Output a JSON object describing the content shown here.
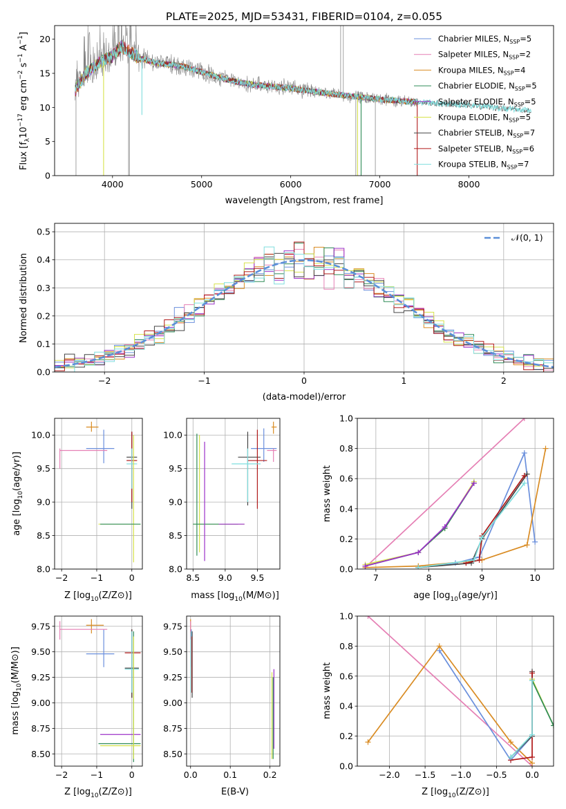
{
  "figure": {
    "title": "PLATE=2025, MJD=53431, FIBERID=0104, z=0.055"
  },
  "colors": {
    "Chabrier MILES": "#6a8fdc",
    "Salpeter MILES": "#e57fb4",
    "Kroupa MILES": "#d98b22",
    "Chabrier ELODIE": "#2e8b57",
    "Salpeter ELODIE": "#9b30c8",
    "Kroupa ELODIE": "#d6e24a",
    "Chabrier STELIB": "#444444",
    "Salpeter STELIB": "#b01818",
    "Kroupa STELIB": "#7fdede",
    "data": "#808080",
    "normal": "#5b8fd8",
    "orange_series": "#e07b22"
  },
  "chart_data": [
    {
      "id": "spectrum",
      "type": "line",
      "title": "PLATE=2025, MJD=53431, FIBERID=0104, z=0.055",
      "xlabel": "wavelength [Angstrom, rest frame]",
      "ylabel_parts": [
        "Flux [f",
        "λ",
        "10",
        "−17",
        " erg cm",
        "−2",
        " s",
        "−1",
        " A",
        "−1",
        "]"
      ],
      "xlim": [
        3350,
        8950
      ],
      "ylim": [
        0,
        22
      ],
      "xticks": [
        "4000",
        "5000",
        "6000",
        "7000",
        "8000"
      ],
      "yticks": [
        "0",
        "5",
        "10",
        "15",
        "20"
      ],
      "grid": false,
      "legend_position": "top-right",
      "legend": [
        {
          "main": "Chabrier MILES, N",
          "sub": "SSP",
          "tail": "=5"
        },
        {
          "main": "Salpeter MILES, N",
          "sub": "SSP",
          "tail": "=2"
        },
        {
          "main": "Kroupa MILES, N",
          "sub": "SSP",
          "tail": "=4"
        },
        {
          "main": "Chabrier ELODIE, N",
          "sub": "SSP",
          "tail": "=5"
        },
        {
          "main": "Salpeter ELODIE, N",
          "sub": "SSP",
          "tail": "=5"
        },
        {
          "main": "Kroupa ELODIE, N",
          "sub": "SSP",
          "tail": "=5"
        },
        {
          "main": "Chabrier STELIB, N",
          "sub": "SSP",
          "tail": "=7"
        },
        {
          "main": "Salpeter STELIB, N",
          "sub": "SSP",
          "tail": "=6"
        },
        {
          "main": "Kroupa STELIB, N",
          "sub": "SSP",
          "tail": "=7"
        }
      ],
      "continuum_nodes": [
        [
          3580,
          12.5
        ],
        [
          3700,
          15.0
        ],
        [
          3850,
          16.5
        ],
        [
          4000,
          17.5
        ],
        [
          4100,
          19.0
        ],
        [
          4300,
          17.2
        ],
        [
          4500,
          16.5
        ],
        [
          4800,
          16.0
        ],
        [
          5000,
          15.2
        ],
        [
          5300,
          14.0
        ],
        [
          5600,
          13.3
        ],
        [
          6000,
          12.8
        ],
        [
          6500,
          11.9
        ],
        [
          7000,
          11.2
        ],
        [
          7500,
          10.7
        ],
        [
          8000,
          10.3
        ],
        [
          8700,
          9.5
        ]
      ]
    },
    {
      "id": "residuals",
      "type": "histogram",
      "xlabel": "(data-model)/error",
      "ylabel": "Normed distribution",
      "xlim": [
        -2.5,
        2.5
      ],
      "ylim": [
        0,
        0.53
      ],
      "xticks": [
        "−2",
        "−1",
        "0",
        "1",
        "2"
      ],
      "yticks": [
        "0.0",
        "0.1",
        "0.2",
        "0.3",
        "0.4",
        "0.5"
      ],
      "grid": true,
      "legend_position": "top-right",
      "legend_label": "𝒩(0, 1)",
      "bin_width": 0.1
    },
    {
      "id": "age-vs-Z",
      "type": "errorbar",
      "xlabel": "Z [log10(Z/Z⊙)]",
      "ylabel": "age  [log10(age/yr)]",
      "xlim": [
        -2.2,
        0.3
      ],
      "ylim": [
        8.0,
        10.25
      ],
      "xticks": [
        "−2",
        "−1",
        "0"
      ],
      "yticks": [
        "8.0",
        "8.5",
        "9.0",
        "9.5",
        "10.0"
      ],
      "grid": true
    },
    {
      "id": "age-vs-mass",
      "type": "errorbar",
      "xlabel": "mass [log10(M/M⊙)]",
      "ylabel": "",
      "xlim": [
        8.4,
        9.85
      ],
      "ylim": [
        8.0,
        10.25
      ],
      "xticks": [
        "8.5",
        "9.0",
        "9.5"
      ],
      "yticks": [
        "8.0",
        "8.5",
        "9.0",
        "9.5",
        "10.0"
      ],
      "grid": true
    },
    {
      "id": "weight-vs-age",
      "type": "line",
      "xlabel": "age  [log10(age/yr)]",
      "ylabel": "mass weight",
      "xlim": [
        6.65,
        10.35
      ],
      "ylim": [
        0,
        1.0
      ],
      "xticks": [
        "7",
        "8",
        "9",
        "10"
      ],
      "yticks": [
        "0.0",
        "0.2",
        "0.4",
        "0.6",
        "0.8",
        "1.0"
      ],
      "grid": true,
      "series": [
        {
          "model": "Salpeter MILES",
          "x": [
            6.8,
            9.8
          ],
          "y": [
            0.01,
            1.0
          ]
        },
        {
          "model": "Kroupa ELODIE",
          "x": [
            6.8,
            7.8,
            8.3,
            8.85
          ],
          "y": [
            0.03,
            0.11,
            0.27,
            0.58
          ]
        },
        {
          "model": "Chabrier ELODIE",
          "x": [
            6.8,
            7.8,
            8.3,
            8.85
          ],
          "y": [
            0.02,
            0.11,
            0.27,
            0.57
          ]
        },
        {
          "model": "Chabrier MILES",
          "x": [
            7.8,
            8.5,
            8.95,
            9.8,
            10.0
          ],
          "y": [
            0.01,
            0.04,
            0.08,
            0.77,
            0.18
          ]
        },
        {
          "model": "Kroupa MILES",
          "x": [
            6.8,
            7.8,
            9.0,
            9.85,
            10.2
          ],
          "y": [
            0.01,
            0.02,
            0.06,
            0.16,
            0.8
          ]
        },
        {
          "model": "Chabrier STELIB",
          "x": [
            7.8,
            8.8,
            9.0,
            9.85
          ],
          "y": [
            0.01,
            0.04,
            0.2,
            0.63
          ]
        },
        {
          "model": "Salpeter STELIB",
          "x": [
            8.7,
            8.95,
            9.0,
            9.8
          ],
          "y": [
            0.04,
            0.06,
            0.22,
            0.62
          ]
        },
        {
          "model": "Kroupa STELIB",
          "x": [
            7.8,
            8.85,
            9.0,
            9.8
          ],
          "y": [
            0.01,
            0.06,
            0.21,
            0.57
          ]
        },
        {
          "model": "Salpeter ELODIE",
          "x": [
            6.8,
            7.8,
            8.3,
            8.85
          ],
          "y": [
            0.02,
            0.11,
            0.28,
            0.57
          ]
        }
      ]
    },
    {
      "id": "mass-vs-Z",
      "type": "errorbar",
      "xlabel": "Z [log10(Z/Z⊙)]",
      "ylabel": "mass [log10(M/M⊙)]",
      "xlim": [
        -2.2,
        0.3
      ],
      "ylim": [
        8.38,
        9.85
      ],
      "xticks": [
        "−2",
        "−1",
        "0"
      ],
      "yticks": [
        "8.50",
        "8.75",
        "9.00",
        "9.25",
        "9.50",
        "9.75"
      ],
      "grid": true
    },
    {
      "id": "mass-vs-EBV",
      "type": "errorbar",
      "xlabel": "E(B-V)",
      "ylabel": "",
      "xlim": [
        -0.01,
        0.225
      ],
      "ylim": [
        8.38,
        9.85
      ],
      "xticks": [
        "0.0",
        "0.1",
        "0.2"
      ],
      "yticks": [
        "8.50",
        "8.75",
        "9.00",
        "9.25",
        "9.50",
        "9.75"
      ],
      "grid": true
    },
    {
      "id": "weight-vs-Z",
      "type": "line",
      "xlabel": "Z [log10(Z/Z⊙)]",
      "ylabel": "mass weight",
      "xlim": [
        -2.45,
        0.3
      ],
      "ylim": [
        0,
        1.0
      ],
      "xticks": [
        "−2.0",
        "−1.5",
        "−1.0",
        "−0.5",
        "0.0"
      ],
      "yticks": [
        "0.0",
        "0.2",
        "0.4",
        "0.6",
        "0.8",
        "1.0"
      ],
      "grid": true,
      "series": [
        {
          "model": "Salpeter MILES",
          "x": [
            -2.3,
            0.0
          ],
          "y": [
            1.0,
            0.0
          ]
        },
        {
          "model": "Kroupa MILES",
          "x": [
            -2.3,
            -1.3,
            -0.3,
            0.0
          ],
          "y": [
            0.16,
            0.8,
            0.16,
            0.02
          ]
        },
        {
          "model": "Chabrier MILES",
          "x": [
            -1.3,
            -0.3,
            0.0
          ],
          "y": [
            0.77,
            0.04,
            0.2
          ]
        },
        {
          "model": "Kroupa ELODIE",
          "x": [
            0.0,
            0.3
          ],
          "y": [
            0.58,
            0.27
          ]
        },
        {
          "model": "Chabrier ELODIE",
          "x": [
            0.0,
            0.3
          ],
          "y": [
            0.57,
            0.27
          ]
        },
        {
          "model": "Chabrier STELIB",
          "x": [
            -0.3,
            0.0,
            0.0
          ],
          "y": [
            0.06,
            0.2,
            0.63
          ]
        },
        {
          "model": "Salpeter STELIB",
          "x": [
            -0.3,
            0.0,
            0.0
          ],
          "y": [
            0.04,
            0.06,
            0.62
          ]
        },
        {
          "model": "Kroupa STELIB",
          "x": [
            -0.3,
            0.0,
            0.0
          ],
          "y": [
            0.06,
            0.21,
            0.57
          ]
        }
      ]
    }
  ]
}
